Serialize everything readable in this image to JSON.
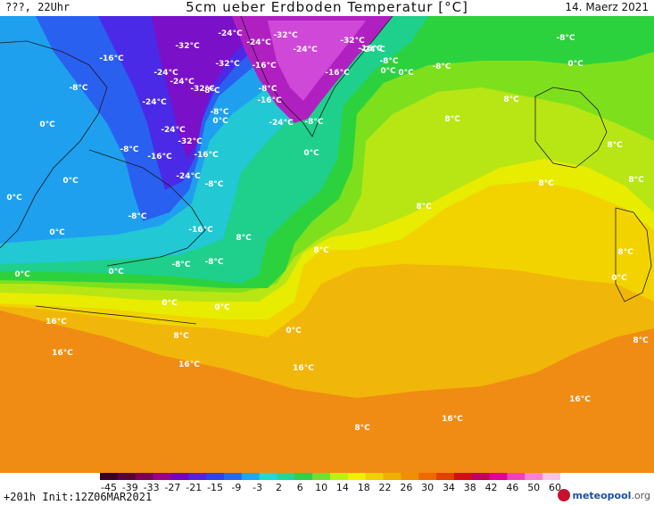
{
  "header": {
    "left": "???, 22Uhr",
    "title": "5cm ueber Erdboden Temperatur [°C]",
    "date": "14. Maerz 2021"
  },
  "footer": {
    "run_info": "+201h Init:12Z06MAR2021",
    "logo_name": "meteopool",
    "logo_tld": ".org"
  },
  "colorbar": {
    "ticks": [
      "-45",
      "-39",
      "-33",
      "-27",
      "-21",
      "-15",
      "-9",
      "-3",
      "2",
      "6",
      "10",
      "14",
      "18",
      "22",
      "26",
      "30",
      "34",
      "38",
      "42",
      "46",
      "50",
      "60"
    ],
    "colors": [
      "#3a0020",
      "#5a0038",
      "#7a0058",
      "#9a0090",
      "#7800c0",
      "#5a20e0",
      "#3040f0",
      "#1e6cf0",
      "#1aa8f0",
      "#20d8d8",
      "#22d890",
      "#2ad24a",
      "#70e030",
      "#c0ee10",
      "#f0f000",
      "#f0d000",
      "#f0b000",
      "#f09000",
      "#f06800",
      "#e04000",
      "#d01010",
      "#c00060",
      "#e000a0",
      "#f040c0",
      "#f880d8",
      "#fcc0ec"
    ]
  },
  "map": {
    "labels": [
      {
        "text": "-24°C"
      },
      {
        "text": "-32°C"
      },
      {
        "text": "-24°C"
      },
      {
        "text": "-32°C"
      },
      {
        "text": "-24°C"
      },
      {
        "text": "-32°C"
      },
      {
        "text": "-24°C"
      },
      {
        "text": "-16°C"
      },
      {
        "text": "-8°C"
      },
      {
        "text": "-8°C"
      },
      {
        "text": "-16°C"
      },
      {
        "text": "-32°C"
      },
      {
        "text": "-24°C"
      },
      {
        "text": "-24°C"
      },
      {
        "text": "-32°C"
      },
      {
        "text": "-16°C"
      },
      {
        "text": "-8°C"
      },
      {
        "text": "-16°C"
      },
      {
        "text": "0°C"
      },
      {
        "text": "0°C"
      },
      {
        "text": "-8°C"
      },
      {
        "text": "-8°C"
      },
      {
        "text": "0°C"
      },
      {
        "text": "-16°C"
      },
      {
        "text": "-8°C"
      },
      {
        "text": "-24°C"
      },
      {
        "text": "-24°C"
      },
      {
        "text": "-8°C"
      },
      {
        "text": "-24°C"
      },
      {
        "text": "-32°C"
      },
      {
        "text": "-8°C"
      },
      {
        "text": "-16°C"
      },
      {
        "text": "-16°C"
      },
      {
        "text": "-24°C"
      },
      {
        "text": "0°C"
      },
      {
        "text": "0°C"
      },
      {
        "text": "-8°C"
      },
      {
        "text": "0°C"
      },
      {
        "text": "-8°C"
      },
      {
        "text": "0°C"
      },
      {
        "text": "-16°C"
      },
      {
        "text": "0°C"
      },
      {
        "text": "-8°C"
      },
      {
        "text": "-8°C"
      },
      {
        "text": "0°C"
      },
      {
        "text": "0°C"
      },
      {
        "text": "0°C"
      },
      {
        "text": "0°C"
      },
      {
        "text": "8°C"
      },
      {
        "text": "8°C"
      },
      {
        "text": "8°C"
      },
      {
        "text": "8°C"
      },
      {
        "text": "8°C"
      },
      {
        "text": "8°C"
      },
      {
        "text": "8°C"
      },
      {
        "text": "8°C"
      },
      {
        "text": "16°C"
      },
      {
        "text": "16°C"
      },
      {
        "text": "16°C"
      },
      {
        "text": "16°C"
      },
      {
        "text": "16°C"
      },
      {
        "text": "16°C"
      },
      {
        "text": "8°C"
      },
      {
        "text": "0°C"
      },
      {
        "text": "8°C"
      },
      {
        "text": "8°C"
      },
      {
        "text": "8°C"
      },
      {
        "text": "0°C"
      },
      {
        "text": "-8°C"
      },
      {
        "text": "0°C"
      }
    ]
  }
}
